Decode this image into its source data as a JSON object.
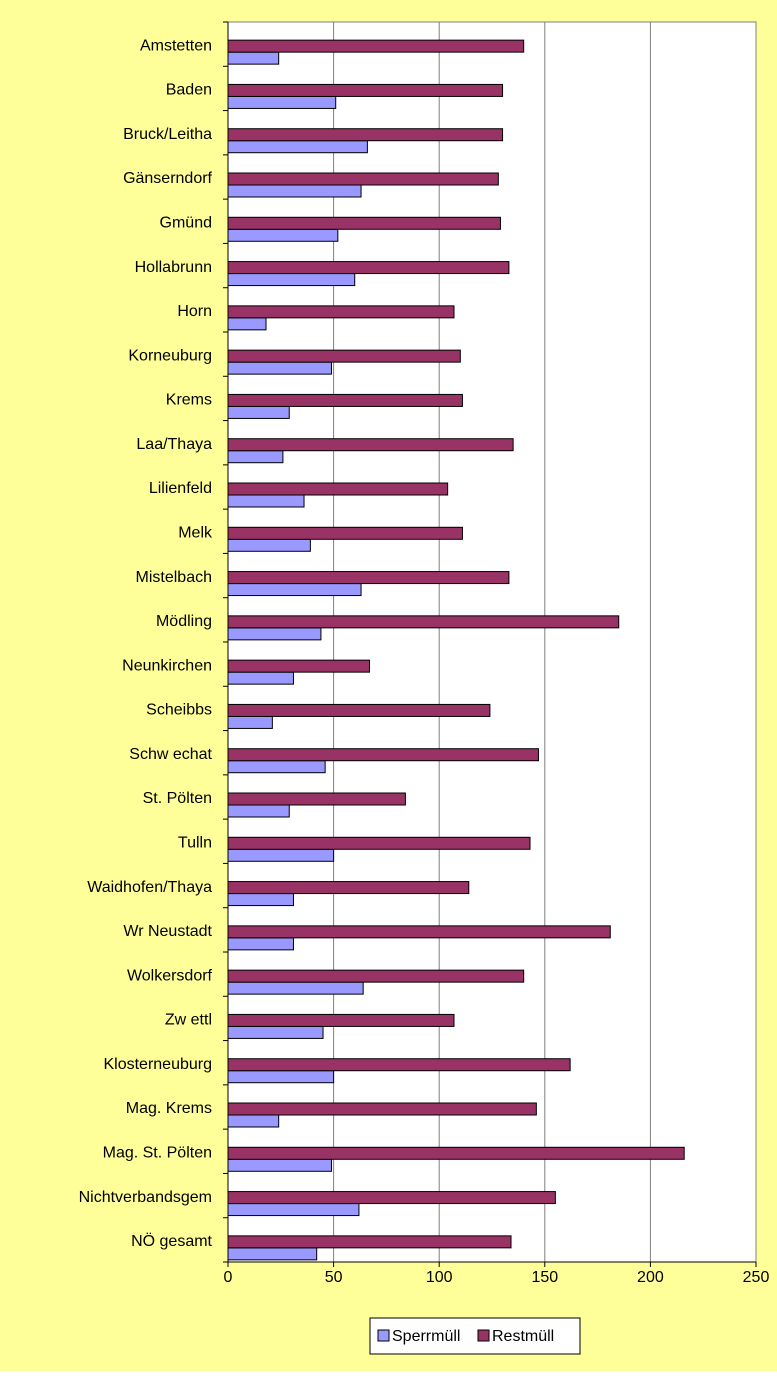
{
  "chart_data": {
    "type": "barh",
    "categories": [
      "Amstetten",
      "Baden",
      "Bruck/Leitha",
      "Gänserndorf",
      "Gmünd",
      "Hollabrunn",
      "Horn",
      "Korneuburg",
      "Krems",
      "Laa/Thaya",
      "Lilienfeld",
      "Melk",
      "Mistelbach",
      "Mödling",
      "Neunkirchen",
      "Scheibbs",
      "Schw echat",
      "St. Pölten",
      "Tulln",
      "Waidhofen/Thaya",
      "Wr Neustadt",
      "Wolkersdorf",
      "Zw ettl",
      "Klosterneuburg",
      "Mag. Krems",
      "Mag. St. Pölten",
      "Nichtverbandsgem",
      "NÖ gesamt"
    ],
    "series": [
      {
        "name": "Sperrmüll",
        "color": "#9999ff",
        "values": [
          24,
          51,
          66,
          63,
          52,
          60,
          18,
          49,
          29,
          26,
          36,
          39,
          63,
          44,
          31,
          21,
          46,
          29,
          50,
          31,
          31,
          64,
          45,
          50,
          24,
          49,
          62,
          42
        ]
      },
      {
        "name": "Restmüll",
        "color": "#993366",
        "values": [
          140,
          130,
          130,
          128,
          129,
          133,
          107,
          110,
          111,
          135,
          104,
          111,
          133,
          185,
          67,
          124,
          147,
          84,
          143,
          114,
          181,
          140,
          107,
          162,
          146,
          216,
          155,
          134
        ]
      }
    ],
    "xlim": [
      0,
      250
    ],
    "xticks": [
      0,
      50,
      100,
      150,
      200,
      250
    ],
    "grid": true,
    "legend": "bottom"
  }
}
